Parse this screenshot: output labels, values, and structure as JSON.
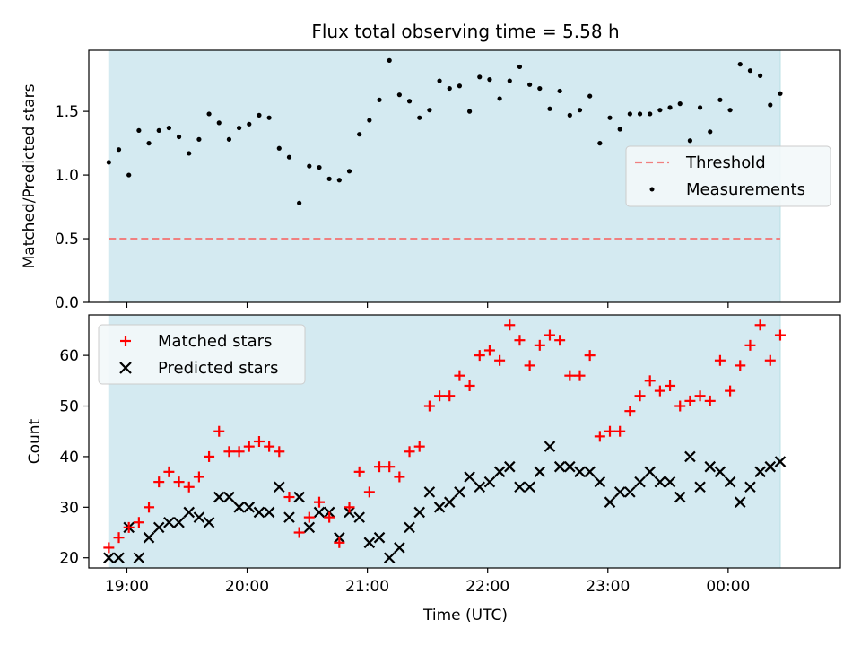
{
  "chart_data": {
    "type": "scatter",
    "title": "Flux total observing time = 5.58 h",
    "xlabel": "Time (UTC)",
    "colors": {
      "shading": "#d4eaf1",
      "shading_edge": "#b8dfe4",
      "threshold": "#f08080",
      "measurements": "#000000",
      "matched": "#ff0000",
      "predicted": "#000000"
    },
    "x_axis": {
      "unit": "UTC time",
      "range": [
        "18:41",
        "00:56"
      ],
      "ticks": [
        "19:00",
        "20:00",
        "21:00",
        "22:00",
        "23:00",
        "00:00"
      ]
    },
    "observing_window": [
      "18:51",
      "00:26"
    ],
    "top_panel": {
      "ylabel": "Matched/Predicted stars",
      "ylim": [
        0,
        1.98
      ],
      "yticks": [
        "0.0",
        "0.5",
        "1.0",
        "1.5"
      ],
      "legend": {
        "placement": "center-right",
        "entries": [
          "Threshold",
          "Measurements"
        ]
      },
      "threshold": {
        "name": "Threshold",
        "value": 0.5,
        "x_range": [
          "18:51",
          "00:26"
        ]
      },
      "series": [
        {
          "name": "Measurements",
          "x": [
            "18:51",
            "18:56",
            "19:01",
            "19:06",
            "19:11",
            "19:16",
            "19:21",
            "19:26",
            "19:31",
            "19:36",
            "19:41",
            "19:46",
            "19:51",
            "19:56",
            "20:01",
            "20:06",
            "20:11",
            "20:16",
            "20:21",
            "20:26",
            "20:31",
            "20:36",
            "20:41",
            "20:46",
            "20:51",
            "20:56",
            "21:01",
            "21:06",
            "21:11",
            "21:16",
            "21:21",
            "21:26",
            "21:31",
            "21:36",
            "21:41",
            "21:46",
            "21:51",
            "21:56",
            "22:01",
            "22:06",
            "22:11",
            "22:16",
            "22:21",
            "22:26",
            "22:31",
            "22:36",
            "22:41",
            "22:46",
            "22:51",
            "22:56",
            "23:01",
            "23:06",
            "23:11",
            "23:16",
            "23:21",
            "23:26",
            "23:31",
            "23:36",
            "23:41",
            "23:46",
            "23:51",
            "23:56",
            "00:01",
            "00:06",
            "00:11",
            "00:16",
            "00:21",
            "00:26"
          ],
          "values": [
            1.1,
            1.2,
            1.0,
            1.35,
            1.25,
            1.35,
            1.37,
            1.3,
            1.17,
            1.28,
            1.48,
            1.41,
            1.28,
            1.37,
            1.4,
            1.47,
            1.45,
            1.21,
            1.14,
            0.78,
            1.07,
            1.06,
            0.97,
            0.96,
            1.03,
            1.32,
            1.43,
            1.59,
            1.9,
            1.63,
            1.58,
            1.45,
            1.51,
            1.74,
            1.68,
            1.7,
            1.5,
            1.77,
            1.75,
            1.6,
            1.74,
            1.85,
            1.71,
            1.68,
            1.52,
            1.66,
            1.47,
            1.51,
            1.62,
            1.25,
            1.45,
            1.36,
            1.48,
            1.48,
            1.48,
            1.51,
            1.53,
            1.56,
            1.27,
            1.53,
            1.34,
            1.59,
            1.51,
            1.87,
            1.82,
            1.78,
            1.55,
            1.64
          ]
        }
      ]
    },
    "bottom_panel": {
      "ylabel": "Count",
      "ylim": [
        18,
        68
      ],
      "yticks": [
        "20",
        "30",
        "40",
        "50",
        "60"
      ],
      "legend": {
        "placement": "top-left",
        "entries": [
          "Matched stars",
          "Predicted stars"
        ]
      },
      "series": [
        {
          "name": "Matched stars",
          "marker": "plus",
          "x": [
            "18:51",
            "18:56",
            "19:01",
            "19:06",
            "19:11",
            "19:16",
            "19:21",
            "19:26",
            "19:31",
            "19:36",
            "19:41",
            "19:46",
            "19:51",
            "19:56",
            "20:01",
            "20:06",
            "20:11",
            "20:16",
            "20:21",
            "20:26",
            "20:31",
            "20:36",
            "20:41",
            "20:46",
            "20:51",
            "20:56",
            "21:01",
            "21:06",
            "21:11",
            "21:16",
            "21:21",
            "21:26",
            "21:31",
            "21:36",
            "21:41",
            "21:46",
            "21:51",
            "21:56",
            "22:01",
            "22:06",
            "22:11",
            "22:16",
            "22:21",
            "22:26",
            "22:31",
            "22:36",
            "22:41",
            "22:46",
            "22:51",
            "22:56",
            "23:01",
            "23:06",
            "23:11",
            "23:16",
            "23:21",
            "23:26",
            "23:31",
            "23:36",
            "23:41",
            "23:46",
            "23:51",
            "23:56",
            "00:01",
            "00:06",
            "00:11",
            "00:16",
            "00:21",
            "00:26"
          ],
          "values": [
            22,
            24,
            26,
            27,
            30,
            35,
            37,
            35,
            34,
            36,
            40,
            45,
            41,
            41,
            42,
            43,
            42,
            41,
            32,
            25,
            28,
            31,
            28,
            23,
            30,
            37,
            33,
            38,
            38,
            36,
            41,
            42,
            50,
            52,
            52,
            56,
            54,
            60,
            61,
            59,
            66,
            63,
            58,
            62,
            64,
            63,
            56,
            56,
            60,
            44,
            45,
            45,
            49,
            52,
            55,
            53,
            54,
            50,
            51,
            52,
            51,
            59,
            53,
            58,
            62,
            66,
            59,
            64
          ]
        },
        {
          "name": "Predicted stars",
          "marker": "x",
          "x": [
            "18:51",
            "18:56",
            "19:01",
            "19:06",
            "19:11",
            "19:16",
            "19:21",
            "19:26",
            "19:31",
            "19:36",
            "19:41",
            "19:46",
            "19:51",
            "19:56",
            "20:01",
            "20:06",
            "20:11",
            "20:16",
            "20:21",
            "20:26",
            "20:31",
            "20:36",
            "20:41",
            "20:46",
            "20:51",
            "20:56",
            "21:01",
            "21:06",
            "21:11",
            "21:16",
            "21:21",
            "21:26",
            "21:31",
            "21:36",
            "21:41",
            "21:46",
            "21:51",
            "21:56",
            "22:01",
            "22:06",
            "22:11",
            "22:16",
            "22:21",
            "22:26",
            "22:31",
            "22:36",
            "22:41",
            "22:46",
            "22:51",
            "22:56",
            "23:01",
            "23:06",
            "23:11",
            "23:16",
            "23:21",
            "23:26",
            "23:31",
            "23:36",
            "23:41",
            "23:46",
            "23:51",
            "23:56",
            "00:01",
            "00:06",
            "00:11",
            "00:16",
            "00:21",
            "00:26"
          ],
          "values": [
            20,
            20,
            26,
            20,
            24,
            26,
            27,
            27,
            29,
            28,
            27,
            32,
            32,
            30,
            30,
            29,
            29,
            34,
            28,
            32,
            26,
            29,
            29,
            24,
            29,
            28,
            23,
            24,
            20,
            22,
            26,
            29,
            33,
            30,
            31,
            33,
            36,
            34,
            35,
            37,
            38,
            34,
            34,
            37,
            42,
            38,
            38,
            37,
            37,
            35,
            31,
            33,
            33,
            35,
            37,
            35,
            35,
            32,
            40,
            34,
            38,
            37,
            35,
            31,
            34,
            37,
            38,
            39
          ]
        }
      ]
    }
  }
}
